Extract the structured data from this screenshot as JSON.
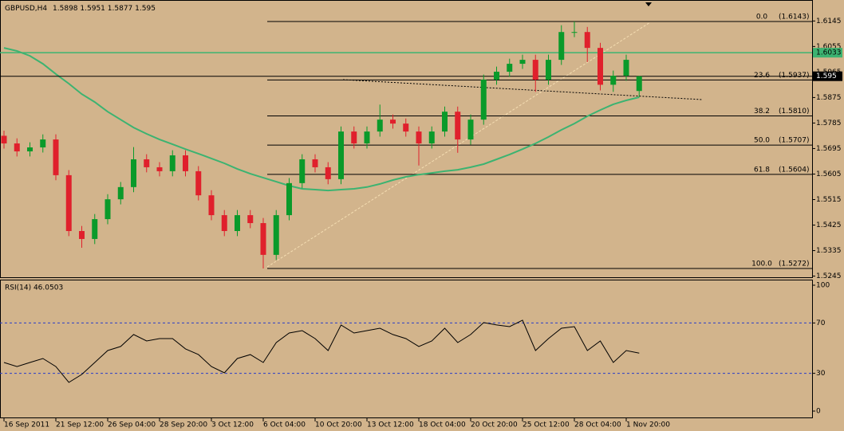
{
  "chart_data": {
    "type": "candlestick",
    "symbol": "GBPUSD,H4",
    "ohlc": [
      1.5898,
      1.5951,
      1.5877,
      1.595
    ],
    "up_color": "#0a9a2a",
    "down_color": "#e0202c",
    "categories": [
      "16 Sep 2011",
      null,
      null,
      null,
      "21 Sep 12:00",
      null,
      null,
      null,
      "26 Sep 04:00",
      null,
      null,
      null,
      "28 Sep 20:00",
      null,
      null,
      null,
      "3 Oct 12:00",
      null,
      null,
      null,
      "6 Oct 04:00",
      null,
      null,
      null,
      "10 Oct 20:00",
      null,
      null,
      null,
      "13 Oct 12:00",
      null,
      null,
      null,
      "18 Oct 04:00",
      null,
      null,
      null,
      "20 Oct 20:00",
      null,
      null,
      null,
      "25 Oct 12:00",
      null,
      null,
      null,
      "28 Oct 04:00",
      null,
      null,
      null,
      "1 Nov 20:00",
      null
    ],
    "candles": [
      [
        1.574,
        1.5758,
        1.5695,
        1.5713
      ],
      [
        1.5713,
        1.5731,
        1.5667,
        1.5685
      ],
      [
        1.5685,
        1.5717,
        1.5667,
        1.5699
      ],
      [
        1.5699,
        1.5745,
        1.5681,
        1.5727
      ],
      [
        1.5727,
        1.5745,
        1.5583,
        1.5601
      ],
      [
        1.5601,
        1.5619,
        1.5386,
        1.5404
      ],
      [
        1.5404,
        1.5422,
        1.5345,
        1.5376
      ],
      [
        1.5376,
        1.5464,
        1.5358,
        1.5446
      ],
      [
        1.5446,
        1.5534,
        1.5428,
        1.5516
      ],
      [
        1.5516,
        1.5577,
        1.5498,
        1.5559
      ],
      [
        1.5559,
        1.57,
        1.5541,
        1.5657
      ],
      [
        1.5657,
        1.5675,
        1.5611,
        1.5629
      ],
      [
        1.5629,
        1.5647,
        1.5597,
        1.5615
      ],
      [
        1.5615,
        1.5689,
        1.5597,
        1.5671
      ],
      [
        1.5671,
        1.5689,
        1.5597,
        1.5615
      ],
      [
        1.5615,
        1.5633,
        1.5512,
        1.553
      ],
      [
        1.553,
        1.5548,
        1.5442,
        1.546
      ],
      [
        1.546,
        1.5478,
        1.5386,
        1.5404
      ],
      [
        1.5404,
        1.5478,
        1.5386,
        1.546
      ],
      [
        1.546,
        1.5478,
        1.5414,
        1.5432
      ],
      [
        1.5432,
        1.545,
        1.5272,
        1.532
      ],
      [
        1.532,
        1.5478,
        1.5302,
        1.546
      ],
      [
        1.546,
        1.5591,
        1.5442,
        1.5573
      ],
      [
        1.5573,
        1.5675,
        1.5555,
        1.5657
      ],
      [
        1.5657,
        1.5675,
        1.5611,
        1.5629
      ],
      [
        1.5629,
        1.5647,
        1.5569,
        1.5587
      ],
      [
        1.5587,
        1.5773,
        1.5569,
        1.5755
      ],
      [
        1.5755,
        1.5773,
        1.5695,
        1.5713
      ],
      [
        1.5713,
        1.5773,
        1.5695,
        1.5755
      ],
      [
        1.5755,
        1.585,
        1.5737,
        1.5797
      ],
      [
        1.5797,
        1.5815,
        1.5765,
        1.5783
      ],
      [
        1.5783,
        1.5801,
        1.5737,
        1.5755
      ],
      [
        1.5755,
        1.5773,
        1.5635,
        1.5713
      ],
      [
        1.5713,
        1.5773,
        1.5695,
        1.5755
      ],
      [
        1.5755,
        1.5843,
        1.5737,
        1.5825
      ],
      [
        1.5825,
        1.5843,
        1.568,
        1.5727
      ],
      [
        1.5727,
        1.5815,
        1.5709,
        1.5797
      ],
      [
        1.5797,
        1.5956,
        1.5779,
        1.5938
      ],
      [
        1.5938,
        1.5984,
        1.592,
        1.5966
      ],
      [
        1.5966,
        1.6012,
        1.5948,
        1.5994
      ],
      [
        1.5994,
        1.6026,
        1.5976,
        1.6008
      ],
      [
        1.6008,
        1.6026,
        1.5895,
        1.5938
      ],
      [
        1.5938,
        1.6026,
        1.592,
        1.6008
      ],
      [
        1.6008,
        1.613,
        1.599,
        1.6106
      ],
      [
        1.6106,
        1.6143,
        1.6088,
        1.6106
      ],
      [
        1.6106,
        1.6124,
        1.6,
        1.605
      ],
      [
        1.605,
        1.6068,
        1.59,
        1.592
      ],
      [
        1.592,
        1.597,
        1.5895,
        1.5952
      ],
      [
        1.5952,
        1.6026,
        1.5934,
        1.6008
      ],
      [
        1.5898,
        1.5951,
        1.5877,
        1.595
      ]
    ],
    "moving_average": {
      "color": "#3cb371",
      "values": [
        1.605,
        1.6039,
        1.6022,
        1.5994,
        1.5958,
        1.5924,
        1.5887,
        1.5859,
        1.5825,
        1.5797,
        1.5769,
        1.5747,
        1.5727,
        1.571,
        1.5693,
        1.5677,
        1.566,
        1.5643,
        1.5623,
        1.5606,
        1.5592,
        1.5578,
        1.5564,
        1.5553,
        1.555,
        1.5547,
        1.555,
        1.5553,
        1.5559,
        1.557,
        1.5584,
        1.5595,
        1.5603,
        1.5609,
        1.5615,
        1.562,
        1.5629,
        1.564,
        1.5657,
        1.5674,
        1.5693,
        1.5713,
        1.5736,
        1.5761,
        1.5783,
        1.5809,
        1.5831,
        1.5851,
        1.5865,
        1.5876
      ]
    },
    "horizontal_line": {
      "value": 1.6033,
      "color": "#3cb371"
    },
    "current_price": 1.595,
    "fibonacci": [
      {
        "level": {
          "value": 0,
          "label": "0.0"
        },
        "price": {
          "value": 1.6143,
          "label": "(1.6143)"
        }
      },
      {
        "level": {
          "value": 23.6,
          "label": "23.6"
        },
        "price": {
          "value": 1.5937,
          "label": "(1.5937)"
        }
      },
      {
        "level": {
          "value": 38.2,
          "label": "38.2"
        },
        "price": {
          "value": 1.581,
          "label": "(1.5810)"
        }
      },
      {
        "level": {
          "value": 50,
          "label": "50.0"
        },
        "price": {
          "value": 1.5707,
          "label": "(1.5707)"
        }
      },
      {
        "level": {
          "value": 61.8,
          "label": "61.8"
        },
        "price": {
          "value": 1.5604,
          "label": "(1.5604)"
        }
      },
      {
        "level": {
          "value": 100,
          "label": "100.0"
        },
        "price": {
          "value": 1.5272,
          "label": "(1.5272)"
        }
      }
    ],
    "ylim": [
      1.5241,
      1.6219
    ],
    "yticks": [
      1.6145,
      1.6055,
      1.5965,
      1.5875,
      1.5785,
      1.5695,
      1.5605,
      1.5515,
      1.5425,
      1.5335,
      1.5245
    ],
    "rsi": {
      "title": "RSI(14) 46.0503",
      "color": "#000000",
      "level_color": "#2a3cc8",
      "levels": [
        70,
        30
      ],
      "values": [
        38.6,
        35.4,
        38.6,
        41.8,
        35.4,
        22.8,
        29.1,
        38.6,
        48.1,
        51.3,
        60.8,
        55.7,
        57.6,
        57.6,
        49.4,
        44.9,
        35.4,
        30.4,
        41.8,
        44.9,
        38.6,
        54.4,
        62.0,
        63.9,
        57.6,
        48.1,
        68.4,
        62.0,
        63.9,
        65.8,
        60.8,
        57.6,
        51.3,
        55.7,
        65.8,
        54.4,
        60.8,
        70.3,
        68.4,
        67.1,
        72.2,
        48.1,
        57.6,
        65.8,
        67.1,
        48.1,
        55.7,
        38.6,
        48.1,
        46.05
      ],
      "ylim": [
        -5.7,
        103.8
      ],
      "yticks": [
        100,
        70,
        30,
        0
      ]
    }
  }
}
